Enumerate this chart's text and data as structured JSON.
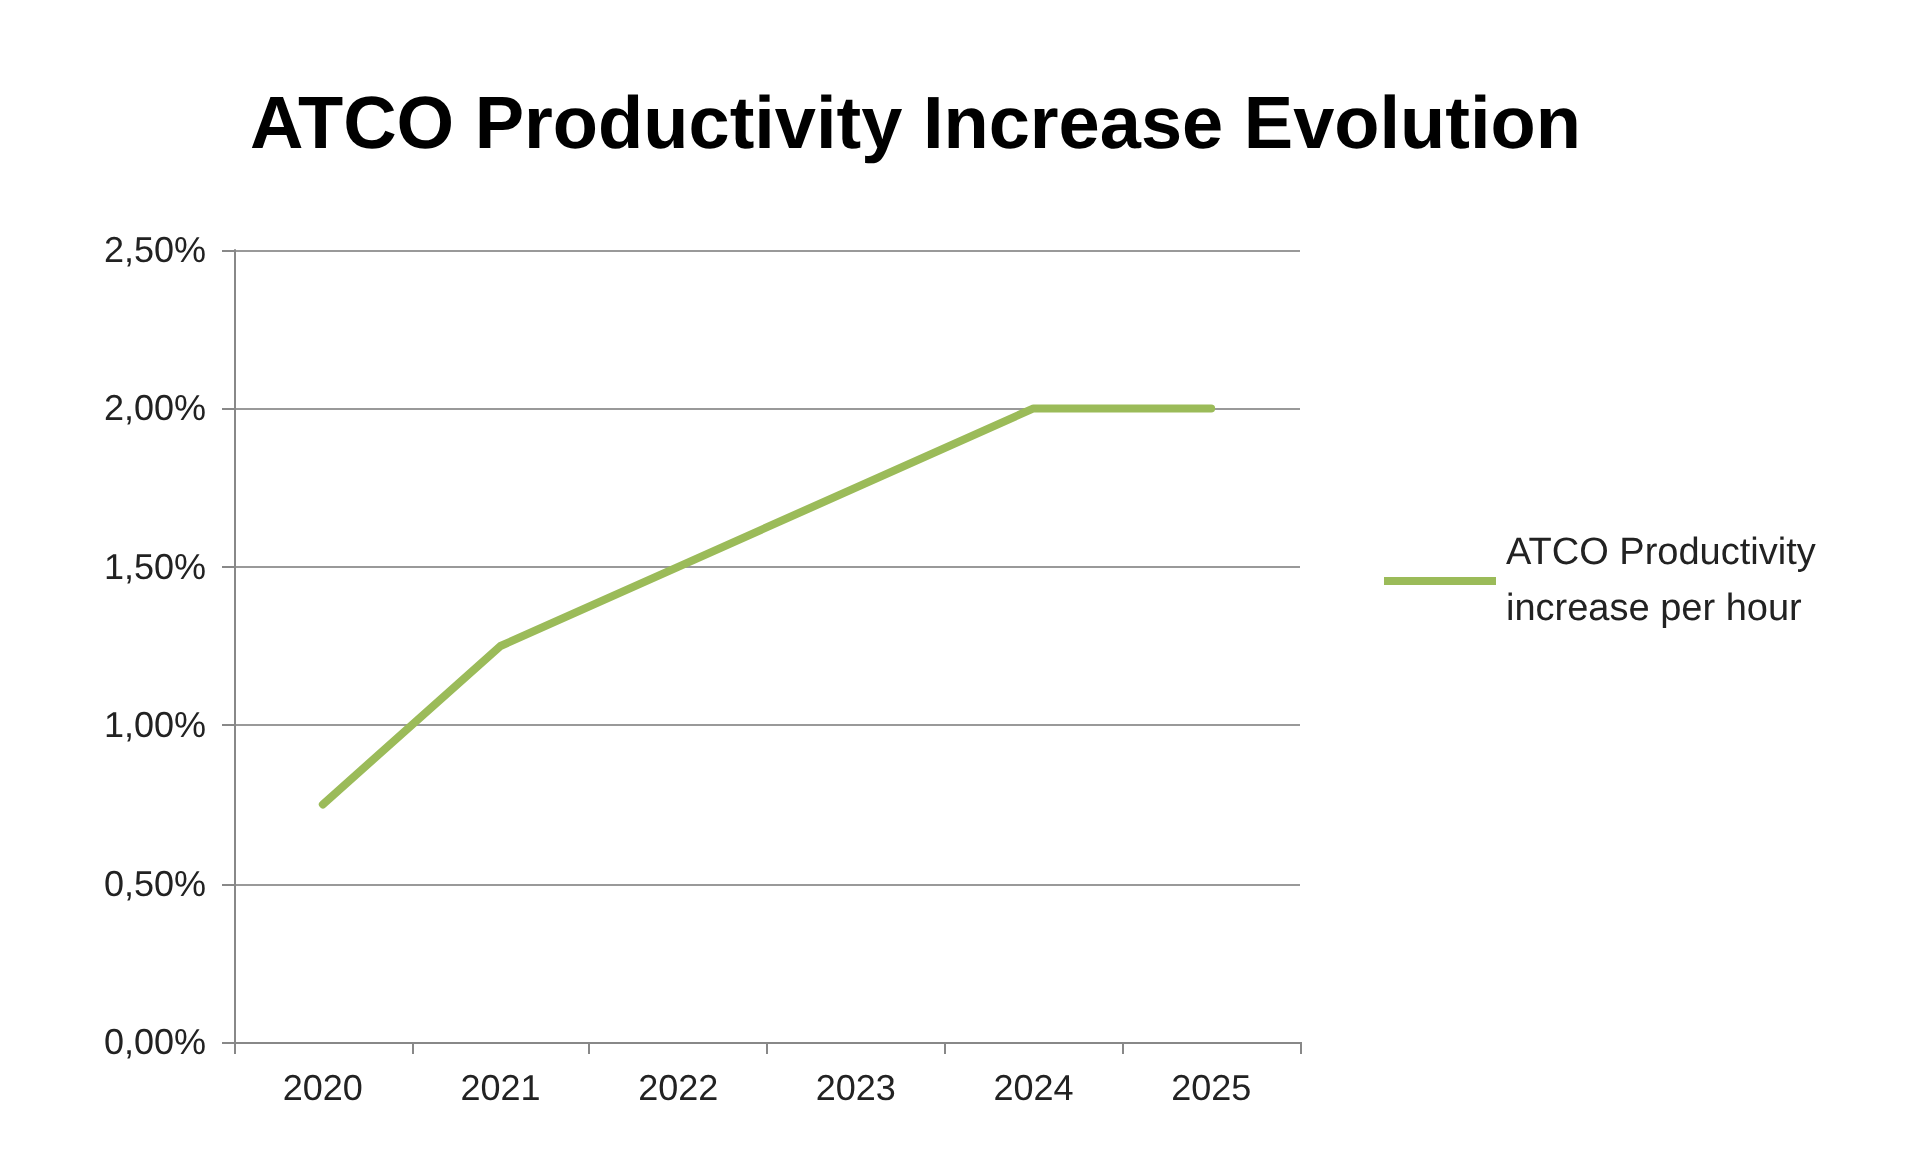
{
  "chart_data": {
    "type": "line",
    "title": "ATCO Productivity Increase Evolution",
    "categories": [
      "2020",
      "2021",
      "2022",
      "2023",
      "2024",
      "2025"
    ],
    "series": [
      {
        "name": "ATCO Productivity increase per hour",
        "color": "#9bbb59",
        "values": [
          0.75,
          1.25,
          1.5,
          1.75,
          2.0,
          2.0
        ]
      }
    ],
    "ylim": [
      0,
      2.5
    ],
    "yticks": [
      {
        "value": 0,
        "label": "0,00%"
      },
      {
        "value": 0.5,
        "label": "0,50%"
      },
      {
        "value": 1,
        "label": "1,00%"
      },
      {
        "value": 1.5,
        "label": "1,50%"
      },
      {
        "value": 2,
        "label": "2,00%"
      },
      {
        "value": 2.5,
        "label": "2,50%"
      }
    ],
    "grid": "y",
    "legend": "right",
    "marker": "none",
    "line_style": "solid"
  }
}
